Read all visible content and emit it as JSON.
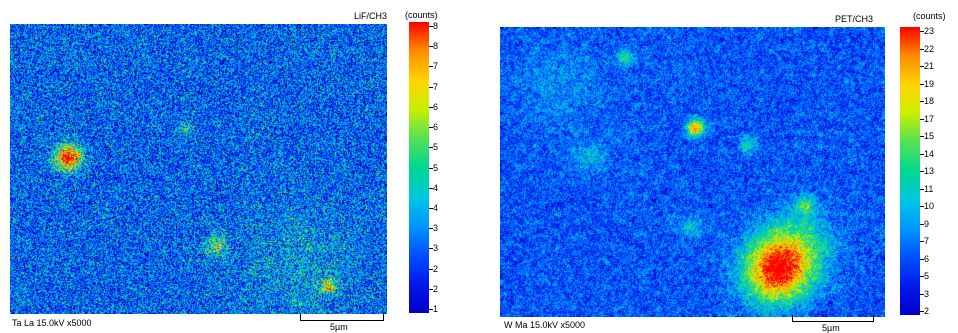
{
  "panels": [
    {
      "crystal": "LiF/CH3",
      "units": "(counts)",
      "caption": "Ta La 15.0kV x5000",
      "scale": "5µm",
      "ticks": [
        "8",
        "8",
        "7",
        "7",
        "6",
        "6",
        "5",
        "5",
        "4",
        "4",
        "3",
        "3",
        "2",
        "2",
        "1"
      ],
      "palette": [
        "#ff0000",
        "#ff8c00",
        "#ffd400",
        "#c8f000",
        "#55e055",
        "#00d890",
        "#00c8e0",
        "#0096ff",
        "#0050ff",
        "#0018ee",
        "#0000c8"
      ]
    },
    {
      "crystal": "PET/CH3",
      "units": "(counts)",
      "caption": "W Ma 15.0kV x5000",
      "scale": "5µm",
      "ticks": [
        "23",
        "22",
        "21",
        "19",
        "18",
        "17",
        "15",
        "14",
        "13",
        "11",
        "10",
        "9",
        "7",
        "6",
        "5",
        "3",
        "2"
      ],
      "palette": [
        "#ff0000",
        "#ff8c00",
        "#ffd400",
        "#c8f000",
        "#55e055",
        "#00d890",
        "#00c8e0",
        "#0096ff",
        "#0050ff",
        "#0018ee",
        "#0000c8"
      ]
    }
  ]
}
